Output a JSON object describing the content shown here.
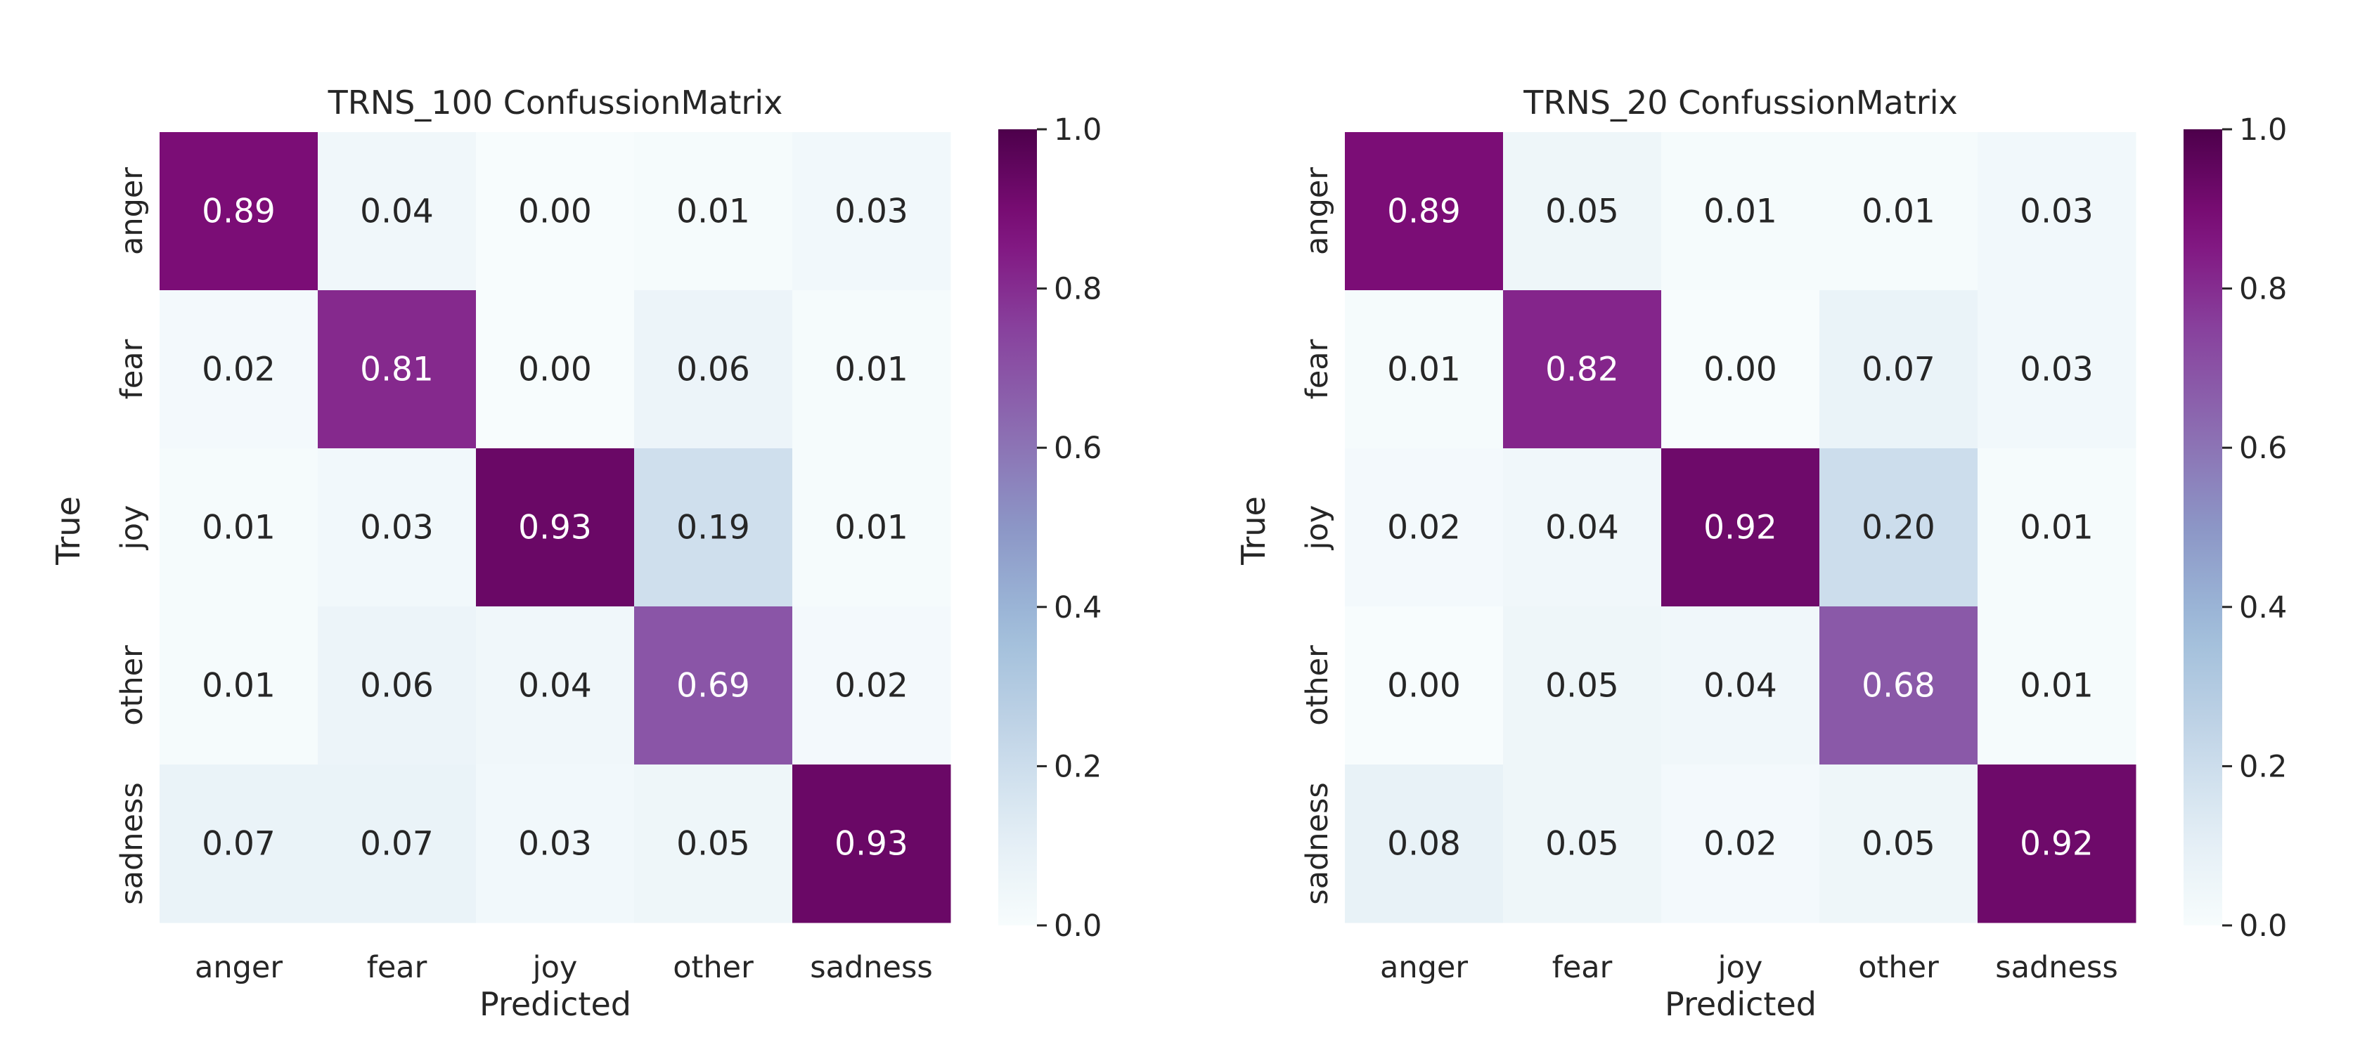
{
  "chart_data": [
    {
      "type": "heatmap",
      "title": "TRNS_100 ConfussionMatrix",
      "xlabel": "Predicted",
      "ylabel": "True",
      "x_categories": [
        "anger",
        "fear",
        "joy",
        "other",
        "sadness"
      ],
      "y_categories": [
        "anger",
        "fear",
        "joy",
        "other",
        "sadness"
      ],
      "values": [
        [
          0.89,
          0.04,
          0.0,
          0.01,
          0.03
        ],
        [
          0.02,
          0.81,
          0.0,
          0.06,
          0.01
        ],
        [
          0.01,
          0.03,
          0.93,
          0.19,
          0.01
        ],
        [
          0.01,
          0.06,
          0.04,
          0.69,
          0.02
        ],
        [
          0.07,
          0.07,
          0.03,
          0.05,
          0.93
        ]
      ],
      "value_labels": [
        [
          "0.89",
          "0.04",
          "0.00",
          "0.01",
          "0.03"
        ],
        [
          "0.02",
          "0.81",
          "0.00",
          "0.06",
          "0.01"
        ],
        [
          "0.01",
          "0.03",
          "0.93",
          "0.19",
          "0.01"
        ],
        [
          "0.01",
          "0.06",
          "0.04",
          "0.69",
          "0.02"
        ],
        [
          "0.07",
          "0.07",
          "0.03",
          "0.05",
          "0.93"
        ]
      ],
      "colorbar": {
        "range": [
          0.0,
          1.0
        ],
        "ticks": [
          "0.0",
          "0.2",
          "0.4",
          "0.6",
          "0.8",
          "1.0"
        ]
      }
    },
    {
      "type": "heatmap",
      "title": "TRNS_20 ConfussionMatrix",
      "xlabel": "Predicted",
      "ylabel": "True",
      "x_categories": [
        "anger",
        "fear",
        "joy",
        "other",
        "sadness"
      ],
      "y_categories": [
        "anger",
        "fear",
        "joy",
        "other",
        "sadness"
      ],
      "values": [
        [
          0.89,
          0.05,
          0.01,
          0.01,
          0.03
        ],
        [
          0.01,
          0.82,
          0.0,
          0.07,
          0.03
        ],
        [
          0.02,
          0.04,
          0.92,
          0.2,
          0.01
        ],
        [
          0.0,
          0.05,
          0.04,
          0.68,
          0.01
        ],
        [
          0.08,
          0.05,
          0.02,
          0.05,
          0.92
        ]
      ],
      "value_labels": [
        [
          "0.89",
          "0.05",
          "0.01",
          "0.01",
          "0.03"
        ],
        [
          "0.01",
          "0.82",
          "0.00",
          "0.07",
          "0.03"
        ],
        [
          "0.02",
          "0.04",
          "0.92",
          "0.20",
          "0.01"
        ],
        [
          "0.00",
          "0.05",
          "0.04",
          "0.68",
          "0.01"
        ],
        [
          "0.08",
          "0.05",
          "0.02",
          "0.05",
          "0.92"
        ]
      ],
      "colorbar": {
        "range": [
          0.0,
          1.0
        ],
        "ticks": [
          "0.0",
          "0.2",
          "0.4",
          "0.6",
          "0.8",
          "1.0"
        ]
      }
    }
  ],
  "colormap": {
    "name": "BuPu",
    "stops": [
      "#f7fcfd",
      "#e0ecf4",
      "#bfd3e6",
      "#9ebcda",
      "#8c96c6",
      "#8c6bb1",
      "#88419d",
      "#810f7c",
      "#4d004b"
    ]
  },
  "text_colors": {
    "dark": "#262626",
    "light": "#ffffff"
  }
}
